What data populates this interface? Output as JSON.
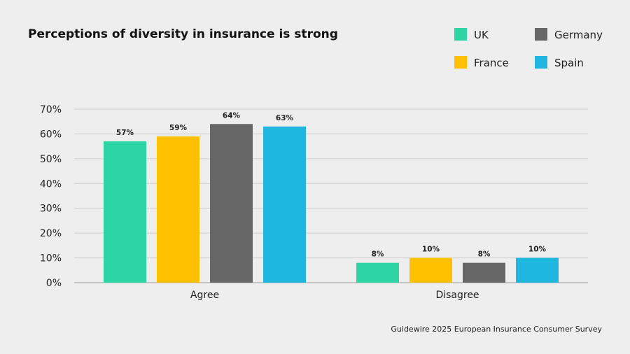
{
  "chart_data": {
    "type": "bar",
    "title": "Perceptions of diversity in insurance is strong",
    "categories": [
      "Agree",
      "Disagree"
    ],
    "series": [
      {
        "name": "UK",
        "color": "#2dd4a4",
        "values": [
          57,
          8
        ],
        "labels": [
          "57%",
          "8%"
        ]
      },
      {
        "name": "France",
        "color": "#ffc000",
        "values": [
          59,
          10
        ],
        "labels": [
          "59%",
          "10%"
        ]
      },
      {
        "name": "Germany",
        "color": "#666666",
        "values": [
          64,
          8
        ],
        "labels": [
          "64%",
          "8%"
        ]
      },
      {
        "name": "Spain",
        "color": "#1fb7e0",
        "values": [
          63,
          10
        ],
        "labels": [
          "63%",
          "10%"
        ]
      }
    ],
    "ylim": [
      0,
      70
    ],
    "yticks": [
      0,
      10,
      20,
      30,
      40,
      50,
      60,
      70
    ],
    "ytick_labels": [
      "0%",
      "10%",
      "20%",
      "30%",
      "40%",
      "50%",
      "60%",
      "70%"
    ],
    "xlabel": "",
    "ylabel": "",
    "grid": true,
    "legend": {
      "placement": "top-right",
      "order": [
        "UK",
        "Germany",
        "France",
        "Spain"
      ]
    },
    "source": "Guidewire 2025 European Insurance Consumer Survey"
  }
}
